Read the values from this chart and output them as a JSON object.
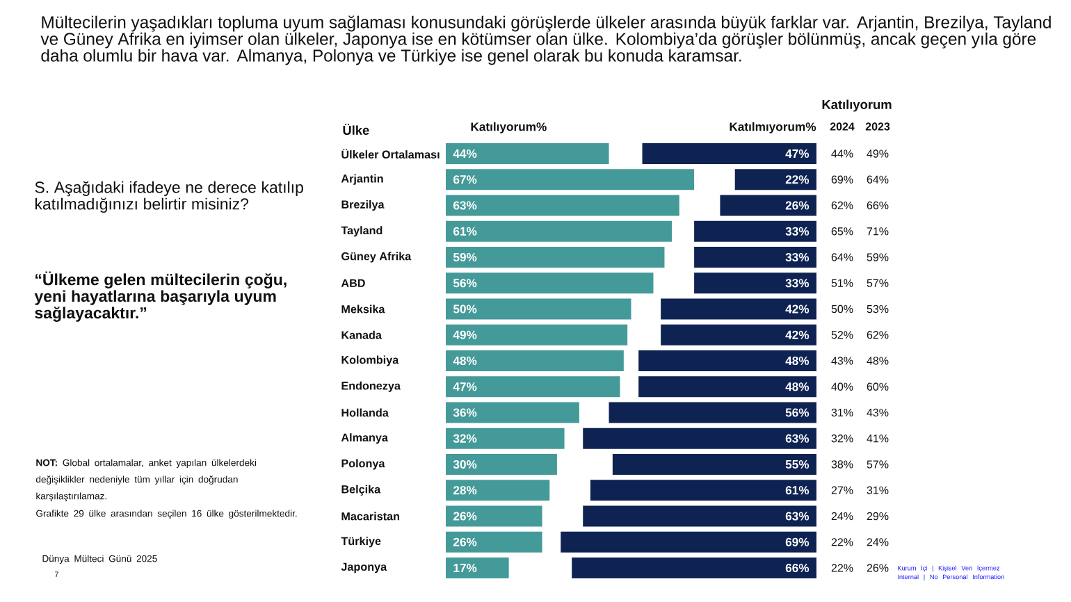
{
  "chart_data": [
    {
      "type": "bar",
      "orientation": "horizontal",
      "title": "Mültecilerin yaşadıkları topluma uyum sağlaması konusundaki görüşlerde ülkeler arasında büyük farklar var. Arjantin, Brezilya, Tayland ve Güney Afrika en iyimser olan ülkeler, Japonya ise en kötümser olan ülke. Kolombiya’da görüşler bölünmüş, ancak geçen yıla göre daha olumlu bir hava var. Almanya, Polonya ve Türkiye ise genel olarak bu konuda karamsar.",
      "subtitle": "S. Aşağıdaki ifadeye ne derece katılıp katılmadığınızı belirtir misiniz?",
      "ylabel": "Ülke",
      "categories": [
        "Ülkeler Ortalaması",
        "Arjantin",
        "Brezilya",
        "Tayland",
        "Güney Afrika",
        "ABD",
        "Meksika",
        "Kanada",
        "Kolombiya",
        "Endonezya",
        "Hollanda",
        "Almanya",
        "Polonya",
        "Belçika",
        "Macaristan",
        "Türkiye",
        "Japonya"
      ],
      "xlim": [
        0,
        67
      ],
      "tick_labels": "y",
      "series": [
        {
          "name": "Katılıyorum%",
          "color": "#449a99",
          "values": [
            44,
            67,
            63,
            61,
            59,
            56,
            50,
            49,
            48,
            47,
            36,
            32,
            30,
            28,
            26,
            26,
            17
          ],
          "value_labels": [
            "44%",
            "67%",
            "63%",
            "61%",
            "59%",
            "56%",
            "50%",
            "49%",
            "48%",
            "47%",
            "36%",
            "32%",
            "30%",
            "28%",
            "26%",
            "26%",
            "17%"
          ]
        }
      ],
      "annotations": [
        "“Ülkeme gelen mültecilerin çoğu, yeni hayatlarına başarıyla uyum sağlayacaktır.”",
        "**NOT:** Global ortalamalar, anket yapılan ülkelerdeki değişiklikler nedeniyle tüm yıllar için doğrudan karşılaştırılamaz.",
        "Grafikte 29 ülke arasından seçilen 16 ülke gösterilmektedir.",
        "Dünya Mülteci Günü 2025",
        "7",
        "Kurum İçi | Kişisel Veri İçermez",
        "Internal | No Personal Information"
      ]
    },
    {
      "type": "bar",
      "orientation": "horizontal",
      "categories": [
        null,
        null,
        null,
        null,
        null,
        null,
        null,
        null,
        null,
        null,
        null,
        null,
        null,
        null,
        null,
        null,
        null
      ],
      "xlim": [
        69,
        0
      ],
      "tick_labels": false,
      "series": [
        {
          "name": "Katılmıyorum%",
          "color": "#0f2352",
          "values": [
            47,
            22,
            26,
            33,
            33,
            33,
            42,
            42,
            48,
            48,
            56,
            63,
            55,
            61,
            63,
            69,
            66
          ],
          "value_labels": [
            "47%",
            "22%",
            "26%",
            "33%",
            "33%",
            "33%",
            "42%",
            "42%",
            "48%",
            "48%",
            "56%",
            "63%",
            "55%",
            "61%",
            "63%",
            "69%",
            "66%"
          ]
        }
      ]
    },
    {
      "type": "other",
      "title": "Katılıyorum",
      "annotations": [
        "2024",
        "2023",
        "44%",
        "49%",
        "69%",
        "64%",
        "62%",
        "66%",
        "65%",
        "71%",
        "64%",
        "59%",
        "51%",
        "57%",
        "50%",
        "53%",
        "52%",
        "62%",
        "43%",
        "48%",
        "40%",
        "60%",
        "31%",
        "43%",
        "32%",
        "41%",
        "38%",
        "57%",
        "27%",
        "31%",
        "24%",
        "29%",
        "22%",
        "24%",
        "22%",
        "26%"
      ]
    }
  ]
}
